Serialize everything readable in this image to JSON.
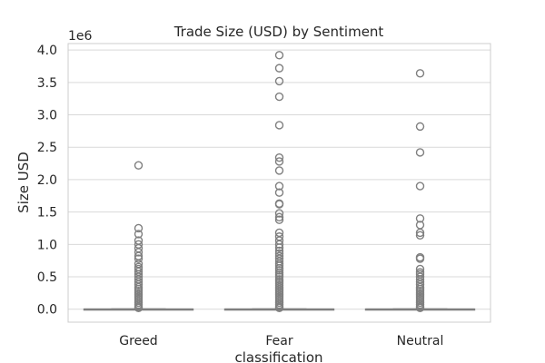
{
  "chart_data": {
    "type": "box",
    "title": "Trade Size (USD) by Sentiment",
    "xlabel": "classification",
    "ylabel": "Size USD",
    "y_multiplier_label": "1e6",
    "categories": [
      "Greed",
      "Fear",
      "Neutral"
    ],
    "ylim": [
      -0.2,
      4.1
    ],
    "yticks": [
      0.0,
      0.5,
      1.0,
      1.5,
      2.0,
      2.5,
      3.0,
      3.5,
      4.0
    ],
    "ytick_labels": [
      "0.0",
      "0.5",
      "1.0",
      "1.5",
      "2.0",
      "2.5",
      "3.0",
      "3.5",
      "4.0"
    ],
    "grid": true,
    "colors": {
      "box": "#7f7f7f",
      "grid": "#d9d9d9",
      "spine": "#cccccc"
    },
    "boxes": [
      {
        "name": "Greed",
        "whisker_low": 0.0,
        "q1": 0.0,
        "median": 0.0,
        "q3": 0.002,
        "whisker_high": 0.006,
        "outliers": [
          0.02,
          0.04,
          0.07,
          0.1,
          0.13,
          0.16,
          0.19,
          0.22,
          0.25,
          0.28,
          0.31,
          0.34,
          0.38,
          0.42,
          0.46,
          0.5,
          0.54,
          0.58,
          0.62,
          0.65,
          0.7,
          0.78,
          0.82,
          0.88,
          0.94,
          1.0,
          1.06,
          1.16,
          1.25,
          2.22
        ]
      },
      {
        "name": "Fear",
        "whisker_low": 0.0,
        "q1": 0.0,
        "median": 0.0,
        "q3": 0.002,
        "whisker_high": 0.006,
        "outliers": [
          0.02,
          0.04,
          0.07,
          0.1,
          0.13,
          0.16,
          0.19,
          0.22,
          0.25,
          0.28,
          0.31,
          0.34,
          0.37,
          0.4,
          0.43,
          0.46,
          0.5,
          0.53,
          0.56,
          0.6,
          0.63,
          0.67,
          0.7,
          0.74,
          0.78,
          0.82,
          0.86,
          0.9,
          0.95,
          1.0,
          1.06,
          1.12,
          1.18,
          1.38,
          1.42,
          1.48,
          1.62,
          1.63,
          1.8,
          1.9,
          2.14,
          2.28,
          2.34,
          2.84,
          3.28,
          3.52,
          3.72,
          3.92
        ]
      },
      {
        "name": "Neutral",
        "whisker_low": 0.0,
        "q1": 0.0,
        "median": 0.0,
        "q3": 0.002,
        "whisker_high": 0.006,
        "outliers": [
          0.02,
          0.04,
          0.07,
          0.1,
          0.13,
          0.16,
          0.19,
          0.22,
          0.25,
          0.28,
          0.31,
          0.34,
          0.38,
          0.42,
          0.46,
          0.5,
          0.54,
          0.57,
          0.62,
          0.78,
          0.8,
          1.14,
          1.18,
          1.3,
          1.4,
          1.9,
          2.42,
          2.82,
          3.64
        ]
      }
    ]
  }
}
